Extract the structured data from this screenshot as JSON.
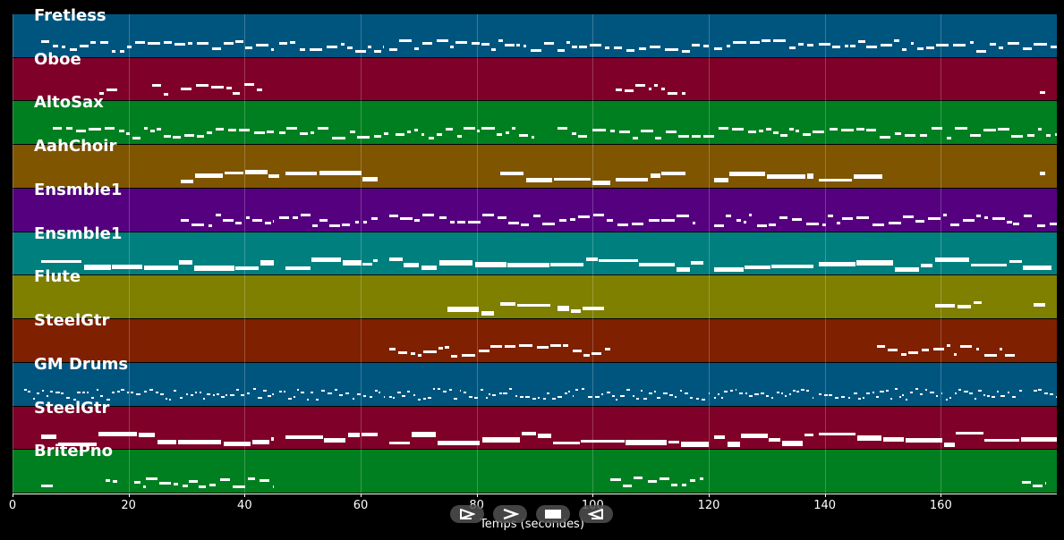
{
  "chart_data": {
    "type": "piano-roll",
    "xlabel": "Temps (secondes)",
    "xlim": [
      0,
      180
    ],
    "x_ticks": [
      "0",
      "20",
      "40",
      "60",
      "80",
      "100",
      "120",
      "140",
      "160"
    ],
    "grid": true,
    "tracks": [
      {
        "name": "Fretless",
        "color": "#00557f",
        "style": "dashes",
        "segments": [
          [
            5,
            45
          ],
          [
            46,
            64
          ],
          [
            65,
            120
          ],
          [
            121,
            138
          ],
          [
            139,
            180
          ]
        ]
      },
      {
        "name": "Oboe",
        "color": "#7f0028",
        "style": "dashes",
        "segments": [
          [
            15,
            18
          ],
          [
            24,
            27
          ],
          [
            29,
            43
          ],
          [
            104,
            116
          ],
          [
            177,
            178
          ]
        ]
      },
      {
        "name": "AltoSax",
        "color": "#007f20",
        "style": "dashes",
        "segments": [
          [
            7,
            45
          ],
          [
            46,
            65
          ],
          [
            66,
            80
          ],
          [
            80,
            90
          ],
          [
            94,
            99
          ],
          [
            100,
            180
          ]
        ]
      },
      {
        "name": "AahChoir",
        "color": "#7f5500",
        "style": "thick",
        "segments": [
          [
            29,
            46
          ],
          [
            47,
            63
          ],
          [
            84,
            103
          ],
          [
            104,
            116
          ],
          [
            121,
            138
          ],
          [
            139,
            150
          ],
          [
            177,
            178
          ]
        ]
      },
      {
        "name": "Ensmble1",
        "color": "#55007f",
        "style": "dashes",
        "segments": [
          [
            29,
            45
          ],
          [
            46,
            63
          ],
          [
            65,
            118
          ],
          [
            121,
            180
          ]
        ]
      },
      {
        "name": "Ensmble1",
        "color": "#007f7f",
        "style": "thick",
        "segments": [
          [
            5,
            45
          ],
          [
            47,
            63
          ],
          [
            65,
            119
          ],
          [
            121,
            138
          ],
          [
            139,
            179
          ]
        ]
      },
      {
        "name": "Flute",
        "color": "#7f7f00",
        "style": "thick",
        "segments": [
          [
            75,
            83
          ],
          [
            84,
            93
          ],
          [
            94,
            102
          ],
          [
            159,
            167
          ],
          [
            176,
            178
          ]
        ]
      },
      {
        "name": "SteelGtr",
        "color": "#7f2000",
        "style": "dashes",
        "segments": [
          [
            65,
            103
          ],
          [
            149,
            173
          ]
        ]
      },
      {
        "name": "GM Drums",
        "color": "#00557f",
        "style": "dots",
        "segments": [
          [
            2,
            45
          ],
          [
            46,
            64
          ],
          [
            65,
            120
          ],
          [
            121,
            138
          ],
          [
            139,
            174
          ],
          [
            176,
            180
          ]
        ]
      },
      {
        "name": "SteelGtr",
        "color": "#7f0028",
        "style": "thick",
        "segments": [
          [
            5,
            45
          ],
          [
            47,
            63
          ],
          [
            65,
            120
          ],
          [
            121,
            138
          ],
          [
            139,
            180
          ]
        ]
      },
      {
        "name": "BritePno",
        "color": "#007f20",
        "style": "dashes",
        "segments": [
          [
            5,
            7
          ],
          [
            16,
            18
          ],
          [
            21,
            23
          ],
          [
            23,
            45
          ],
          [
            103,
            119
          ],
          [
            174,
            178
          ]
        ]
      }
    ]
  },
  "controls": [
    {
      "name": "play-forward-button",
      "icon": "play-icon"
    },
    {
      "name": "next-button",
      "icon": "chevron-right-icon"
    },
    {
      "name": "stop-button",
      "icon": "stop-icon"
    },
    {
      "name": "play-reverse-button",
      "icon": "reverse-icon"
    }
  ]
}
